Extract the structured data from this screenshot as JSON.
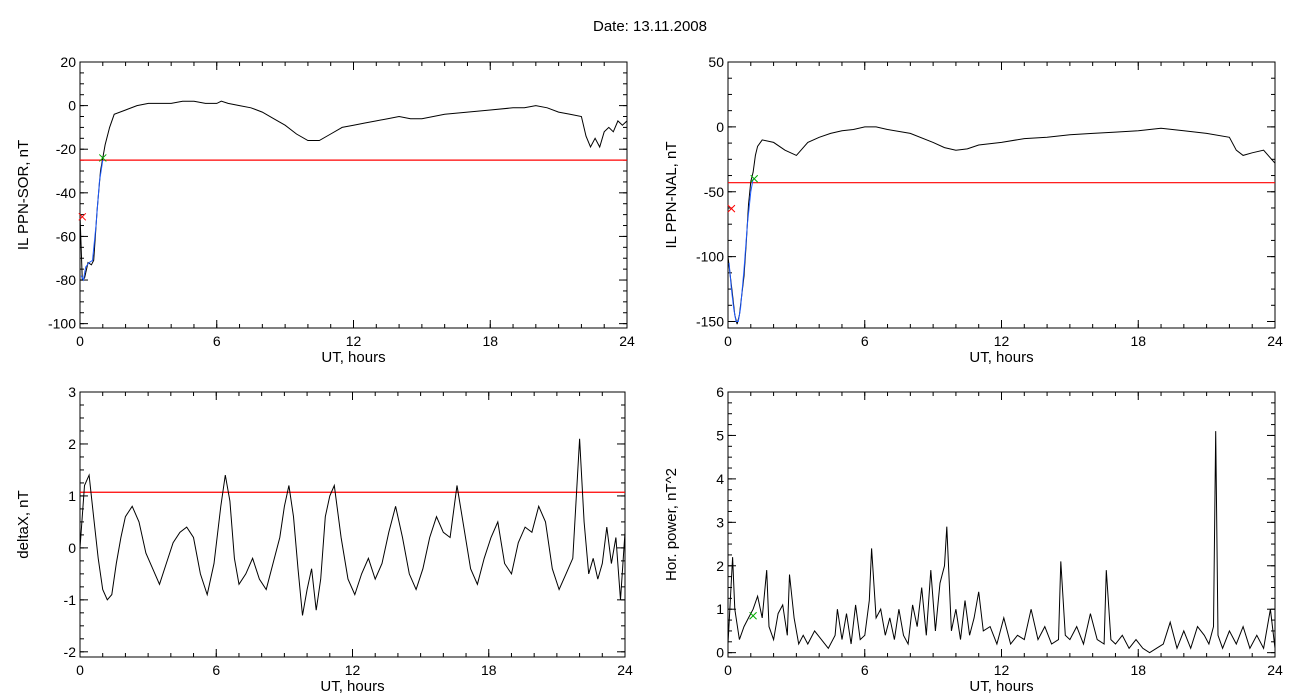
{
  "page": {
    "title": "Date:  13.11.2008"
  },
  "chart_data": [
    {
      "type": "line",
      "ylabel": "IL PPN-SOR, nT",
      "xlabel": "UT, hours",
      "xlim": [
        0,
        24
      ],
      "ylim": [
        -102,
        20
      ],
      "xticks": [
        0,
        6,
        12,
        18,
        24
      ],
      "yticks": [
        20,
        0,
        -20,
        -40,
        -60,
        -80,
        -100
      ],
      "threshold": -25,
      "series": [
        {
          "color": "#000000",
          "x": [
            0,
            0.1,
            0.2,
            0.35,
            0.5,
            0.6,
            0.75,
            0.9,
            1.0,
            1.1,
            1.3,
            1.5,
            2,
            2.5,
            3,
            3.5,
            4,
            4.5,
            5,
            5.5,
            6,
            6.2,
            6.5,
            7,
            7.5,
            8,
            8.5,
            9,
            9.5,
            10,
            10.5,
            11,
            11.5,
            12,
            12.5,
            13,
            13.5,
            14,
            14.5,
            15,
            16,
            17,
            18,
            19,
            19.5,
            20,
            20.5,
            21,
            21.5,
            22,
            22.2,
            22.4,
            22.6,
            22.8,
            23,
            23.2,
            23.4,
            23.6,
            23.8,
            24
          ],
          "y": [
            -50,
            -80,
            -79,
            -72,
            -73,
            -71,
            -48,
            -30,
            -24,
            -18,
            -10,
            -4,
            -2,
            0,
            1,
            1,
            1,
            2,
            2,
            1,
            1,
            2,
            1,
            0,
            -1,
            -3,
            -6,
            -9,
            -13,
            -16,
            -16,
            -13,
            -10,
            -9,
            -8,
            -7,
            -6,
            -5,
            -6,
            -6,
            -4,
            -3,
            -2,
            -1,
            -1,
            0,
            -1,
            -3,
            -4,
            -5,
            -14,
            -19,
            -15,
            -19,
            -12,
            -10,
            -12,
            -7,
            -9,
            -7
          ]
        },
        {
          "color": "#1f5cff",
          "x": [
            0.05,
            0.15,
            0.25,
            0.4,
            0.55,
            0.7,
            0.85,
            1.0
          ],
          "y": [
            -78,
            -80,
            -74,
            -72,
            -71,
            -55,
            -35,
            -25
          ]
        }
      ],
      "markers": [
        {
          "x": 1.0,
          "y": -24,
          "color": "#00aa00"
        },
        {
          "x": 0.1,
          "y": -51,
          "color": "#ff0000"
        }
      ]
    },
    {
      "type": "line",
      "ylabel": "IL PPN-NAL, nT",
      "xlabel": "UT, hours",
      "xlim": [
        0,
        24
      ],
      "ylim": [
        -155,
        50
      ],
      "xticks": [
        0,
        6,
        12,
        18,
        24
      ],
      "yticks": [
        50,
        0,
        -50,
        -100,
        -150
      ],
      "threshold": -43,
      "series": [
        {
          "color": "#000000",
          "x": [
            0,
            0.1,
            0.2,
            0.3,
            0.4,
            0.5,
            0.6,
            0.7,
            0.8,
            0.9,
            1.0,
            1.1,
            1.2,
            1.3,
            1.5,
            2,
            2.5,
            3,
            3.5,
            4,
            4.5,
            5,
            5.5,
            6,
            6.5,
            7,
            8,
            9,
            9.5,
            10,
            10.5,
            11,
            12,
            13,
            14,
            15,
            16,
            17,
            18,
            18.5,
            19,
            20,
            21,
            22,
            22.3,
            22.6,
            23,
            23.5,
            24
          ],
          "y": [
            -100,
            -115,
            -130,
            -145,
            -152,
            -145,
            -130,
            -115,
            -90,
            -60,
            -42,
            -35,
            -22,
            -15,
            -10,
            -12,
            -18,
            -22,
            -12,
            -8,
            -5,
            -3,
            -2,
            0,
            0,
            -2,
            -5,
            -12,
            -16,
            -18,
            -17,
            -14,
            -12,
            -9,
            -8,
            -6,
            -5,
            -4,
            -3,
            -2,
            -1,
            -3,
            -5,
            -8,
            -18,
            -22,
            -20,
            -18,
            -28
          ]
        },
        {
          "color": "#1f5cff",
          "x": [
            0.05,
            0.15,
            0.25,
            0.35,
            0.45,
            0.55,
            0.7,
            0.85,
            1.0,
            1.1
          ],
          "y": [
            -105,
            -125,
            -140,
            -150,
            -150,
            -140,
            -110,
            -75,
            -50,
            -40
          ]
        }
      ],
      "markers": [
        {
          "x": 1.15,
          "y": -40,
          "color": "#00aa00"
        },
        {
          "x": 0.15,
          "y": -63,
          "color": "#ff0000"
        }
      ]
    },
    {
      "type": "line",
      "ylabel": "deltaX, nT",
      "xlabel": "UT, hours",
      "xlim": [
        0,
        24
      ],
      "ylim": [
        -2.1,
        3
      ],
      "xticks": [
        0,
        6,
        12,
        18,
        24
      ],
      "yticks": [
        3,
        2,
        1,
        0,
        -1,
        -2
      ],
      "threshold": 1.07,
      "series": [
        {
          "color": "#000000",
          "x": [
            0,
            0.2,
            0.4,
            0.6,
            0.8,
            1.0,
            1.2,
            1.4,
            1.6,
            1.8,
            2.0,
            2.3,
            2.6,
            2.9,
            3.2,
            3.5,
            3.8,
            4.1,
            4.4,
            4.7,
            5.0,
            5.3,
            5.6,
            5.9,
            6.2,
            6.4,
            6.6,
            6.8,
            7.0,
            7.3,
            7.6,
            7.9,
            8.2,
            8.5,
            8.8,
            9.0,
            9.2,
            9.4,
            9.6,
            9.8,
            10.0,
            10.2,
            10.4,
            10.6,
            10.8,
            11.0,
            11.2,
            11.5,
            11.8,
            12.1,
            12.4,
            12.7,
            13.0,
            13.3,
            13.6,
            13.9,
            14.2,
            14.5,
            14.8,
            15.1,
            15.4,
            15.7,
            16.0,
            16.3,
            16.6,
            16.9,
            17.2,
            17.5,
            17.8,
            18.1,
            18.4,
            18.7,
            19.0,
            19.3,
            19.6,
            19.9,
            20.2,
            20.5,
            20.8,
            21.1,
            21.4,
            21.7,
            22.0,
            22.2,
            22.4,
            22.6,
            22.8,
            23.0,
            23.2,
            23.4,
            23.6,
            23.8,
            24.0
          ],
          "y": [
            0.0,
            1.2,
            1.4,
            0.6,
            -0.2,
            -0.8,
            -1.0,
            -0.9,
            -0.3,
            0.2,
            0.6,
            0.8,
            0.5,
            -0.1,
            -0.4,
            -0.7,
            -0.3,
            0.1,
            0.3,
            0.4,
            0.2,
            -0.5,
            -0.9,
            -0.3,
            0.8,
            1.4,
            0.9,
            -0.2,
            -0.7,
            -0.5,
            -0.2,
            -0.6,
            -0.8,
            -0.3,
            0.2,
            0.8,
            1.2,
            0.6,
            -0.4,
            -1.3,
            -0.8,
            -0.4,
            -1.2,
            -0.6,
            0.6,
            1.0,
            1.2,
            0.2,
            -0.6,
            -0.9,
            -0.5,
            -0.2,
            -0.6,
            -0.3,
            0.3,
            0.8,
            0.2,
            -0.5,
            -0.8,
            -0.4,
            0.2,
            0.6,
            0.3,
            0.2,
            1.2,
            0.4,
            -0.4,
            -0.7,
            -0.2,
            0.2,
            0.5,
            -0.3,
            -0.5,
            0.1,
            0.4,
            0.3,
            0.8,
            0.5,
            -0.4,
            -0.8,
            -0.5,
            -0.2,
            2.1,
            0.5,
            -0.5,
            -0.2,
            -0.6,
            -0.3,
            0.4,
            -0.3,
            0.2,
            -1.0,
            0.3
          ]
        }
      ]
    },
    {
      "type": "line",
      "ylabel": "Hor. power, nT^2",
      "xlabel": "UT, hours",
      "xlim": [
        0,
        24
      ],
      "ylim": [
        -0.1,
        6
      ],
      "xticks": [
        0,
        6,
        12,
        18,
        24
      ],
      "yticks": [
        6,
        5,
        4,
        3,
        2,
        1,
        0
      ],
      "series": [
        {
          "color": "#000000",
          "x": [
            0,
            0.2,
            0.3,
            0.5,
            0.7,
            0.9,
            1.1,
            1.3,
            1.5,
            1.7,
            1.8,
            2.0,
            2.2,
            2.4,
            2.6,
            2.7,
            2.9,
            3.1,
            3.3,
            3.5,
            3.8,
            4.1,
            4.4,
            4.7,
            4.8,
            5.0,
            5.2,
            5.4,
            5.6,
            5.8,
            6.0,
            6.2,
            6.3,
            6.5,
            6.7,
            6.9,
            7.1,
            7.3,
            7.5,
            7.7,
            7.9,
            8.1,
            8.3,
            8.5,
            8.7,
            8.9,
            9.1,
            9.3,
            9.5,
            9.6,
            9.8,
            10.0,
            10.2,
            10.4,
            10.6,
            10.8,
            11.0,
            11.2,
            11.5,
            11.8,
            12.1,
            12.4,
            12.7,
            13.0,
            13.3,
            13.6,
            13.9,
            14.2,
            14.5,
            14.6,
            14.8,
            15.0,
            15.3,
            15.6,
            15.9,
            16.2,
            16.5,
            16.6,
            16.8,
            17.0,
            17.3,
            17.6,
            17.9,
            18.2,
            18.5,
            18.8,
            19.1,
            19.4,
            19.7,
            20.0,
            20.3,
            20.6,
            20.9,
            21.1,
            21.3,
            21.4,
            21.5,
            21.7,
            22.0,
            22.3,
            22.6,
            22.9,
            23.2,
            23.5,
            23.8,
            24.0
          ],
          "y": [
            0.2,
            2.2,
            1.0,
            0.3,
            0.6,
            0.8,
            1.0,
            1.3,
            0.8,
            1.9,
            0.6,
            0.3,
            0.9,
            1.1,
            0.4,
            1.8,
            0.8,
            0.2,
            0.4,
            0.2,
            0.5,
            0.3,
            0.1,
            0.4,
            1.0,
            0.3,
            0.9,
            0.2,
            1.1,
            0.3,
            0.4,
            1.2,
            2.4,
            0.8,
            1.0,
            0.4,
            0.8,
            0.3,
            1.0,
            0.4,
            0.2,
            1.1,
            0.6,
            1.5,
            0.4,
            1.9,
            0.5,
            1.6,
            2.0,
            2.9,
            0.5,
            1.0,
            0.3,
            1.2,
            0.4,
            0.8,
            1.4,
            0.5,
            0.6,
            0.2,
            0.8,
            0.2,
            0.4,
            0.3,
            1.0,
            0.3,
            0.6,
            0.2,
            0.3,
            2.1,
            0.4,
            0.3,
            0.6,
            0.2,
            0.9,
            0.3,
            0.2,
            1.9,
            0.3,
            0.2,
            0.4,
            0.1,
            0.3,
            0.1,
            0.0,
            0.1,
            0.2,
            0.7,
            0.1,
            0.5,
            0.1,
            0.6,
            0.4,
            0.2,
            0.6,
            5.1,
            0.4,
            0.1,
            0.5,
            0.2,
            0.6,
            0.1,
            0.4,
            0.1,
            1.0,
            0.1
          ]
        }
      ],
      "markers": [
        {
          "x": 1.1,
          "y": 0.85,
          "color": "#00aa00"
        }
      ]
    }
  ]
}
